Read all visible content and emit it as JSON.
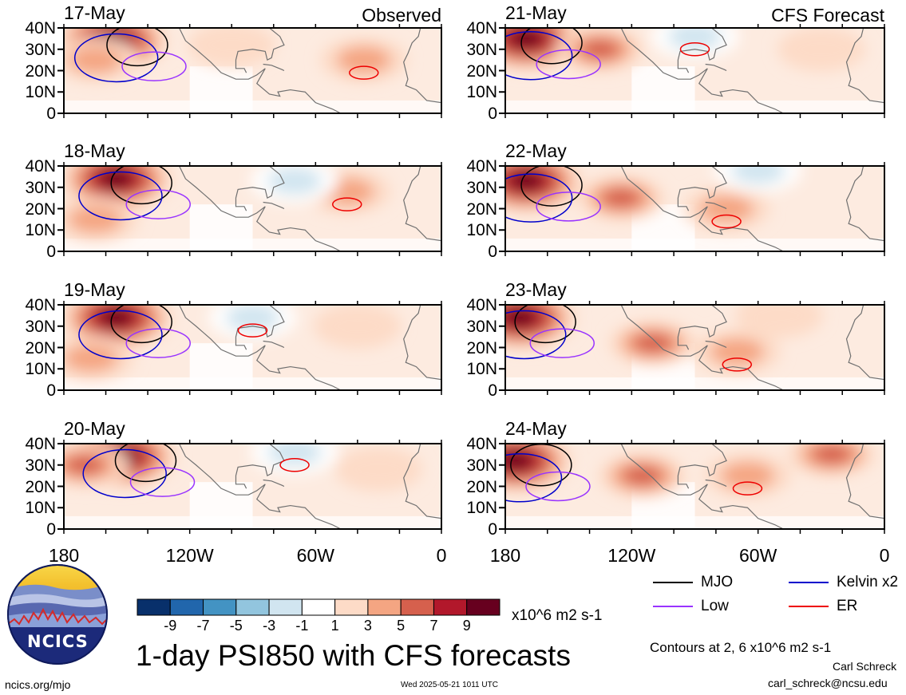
{
  "chart_data": {
    "type": "heatmap",
    "title": "1-day PSI850 with CFS forecasts",
    "field": "PSI850",
    "unit": "x10^6 m2 s-1",
    "contour_note": "Contours at 2, 6 x10^6 m2 s-1",
    "x_ticks": [
      "180",
      "120W",
      "60W",
      "0"
    ],
    "y_ticks": [
      "40N",
      "30N",
      "20N",
      "10N",
      "0"
    ],
    "xlim": [
      180,
      360
    ],
    "ylim": [
      0,
      40
    ],
    "colorbar_levels": [
      "-9",
      "-7",
      "-5",
      "-3",
      "-1",
      "1",
      "3",
      "5",
      "7",
      "9"
    ],
    "colorbar_colors": [
      "#08306b",
      "#2166ac",
      "#4393c3",
      "#92c5de",
      "#d1e5f0",
      "#ffffff",
      "#fddbc7",
      "#f4a582",
      "#d6604d",
      "#b2182b",
      "#67001f"
    ],
    "legend": [
      {
        "label": "MJO",
        "color": "#000000"
      },
      {
        "label": "Kelvin x2",
        "color": "#0000cc"
      },
      {
        "label": "Low",
        "color": "#9933ff"
      },
      {
        "label": "ER",
        "color": "#ee0000"
      }
    ],
    "panels": [
      {
        "date": "17-May",
        "tag": "Observed",
        "centers": [
          {
            "lon": 203,
            "lat": 34,
            "v": 9
          },
          {
            "lon": 195,
            "lat": 25,
            "v": 4
          },
          {
            "lon": 323,
            "lat": 25,
            "v": 3
          },
          {
            "lon": 260,
            "lat": 32,
            "v": 1
          }
        ]
      },
      {
        "date": "18-May",
        "tag": "",
        "centers": [
          {
            "lon": 205,
            "lat": 34,
            "v": 9
          },
          {
            "lon": 195,
            "lat": 15,
            "v": 4
          },
          {
            "lon": 315,
            "lat": 28,
            "v": 3
          },
          {
            "lon": 290,
            "lat": 33,
            "v": -3
          }
        ]
      },
      {
        "date": "19-May",
        "tag": "",
        "centers": [
          {
            "lon": 205,
            "lat": 34,
            "v": 9
          },
          {
            "lon": 193,
            "lat": 15,
            "v": 4
          },
          {
            "lon": 270,
            "lat": 34,
            "v": -3
          },
          {
            "lon": 320,
            "lat": 30,
            "v": 2
          }
        ]
      },
      {
        "date": "20-May",
        "tag": "",
        "centers": [
          {
            "lon": 207,
            "lat": 34,
            "v": 9
          },
          {
            "lon": 190,
            "lat": 30,
            "v": 5
          },
          {
            "lon": 290,
            "lat": 36,
            "v": -3
          },
          {
            "lon": 330,
            "lat": 28,
            "v": 2
          }
        ]
      },
      {
        "date": "21-May",
        "tag": "CFS Forecast",
        "centers": [
          {
            "lon": 190,
            "lat": 35,
            "v": 9
          },
          {
            "lon": 225,
            "lat": 30,
            "v": 5
          },
          {
            "lon": 270,
            "lat": 36,
            "v": -3
          },
          {
            "lon": 330,
            "lat": 30,
            "v": 2
          }
        ]
      },
      {
        "date": "22-May",
        "tag": "",
        "centers": [
          {
            "lon": 190,
            "lat": 33,
            "v": 9
          },
          {
            "lon": 235,
            "lat": 25,
            "v": 5
          },
          {
            "lon": 285,
            "lat": 20,
            "v": 4
          },
          {
            "lon": 300,
            "lat": 38,
            "v": -3
          }
        ]
      },
      {
        "date": "23-May",
        "tag": "",
        "centers": [
          {
            "lon": 187,
            "lat": 34,
            "v": 9
          },
          {
            "lon": 250,
            "lat": 22,
            "v": 5
          },
          {
            "lon": 290,
            "lat": 18,
            "v": 4
          },
          {
            "lon": 310,
            "lat": 35,
            "v": 2
          }
        ]
      },
      {
        "date": "24-May",
        "tag": "",
        "centers": [
          {
            "lon": 185,
            "lat": 32,
            "v": 9
          },
          {
            "lon": 245,
            "lat": 25,
            "v": 5
          },
          {
            "lon": 295,
            "lat": 25,
            "v": 4
          },
          {
            "lon": 335,
            "lat": 35,
            "v": 5
          }
        ]
      }
    ]
  },
  "footer": {
    "logo_text": "NCICS",
    "site": "ncics.org/mjo",
    "timestamp": "Wed 2025-05-21 1011 UTC",
    "author": "Carl Schreck",
    "email": "carl_schreck@ncsu.edu"
  }
}
